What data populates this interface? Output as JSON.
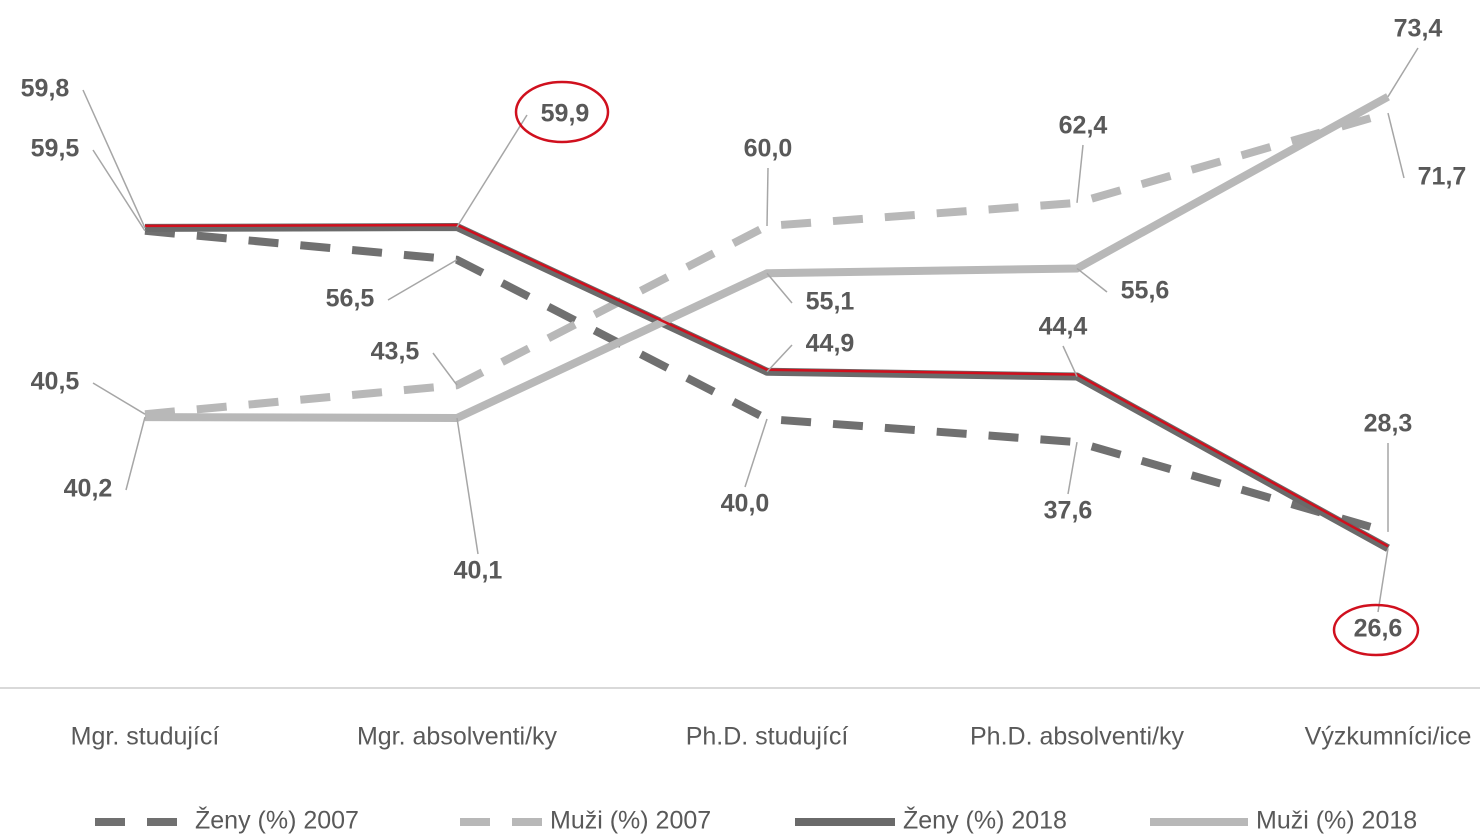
{
  "chart_data": {
    "type": "line",
    "categories": [
      "Mgr. studující",
      "Mgr. absolventi/ky",
      "Ph.D. studující",
      "Ph.D. absolventi/ky",
      "Výzkumníci/ice"
    ],
    "ylim": [
      20,
      80
    ],
    "legend": "bottom",
    "series": [
      {
        "name": "Ženy (%) 2007",
        "color": "#707070",
        "dashed": true,
        "values": [
          59.5,
          56.5,
          40.0,
          37.6,
          28.3
        ],
        "value_labels": [
          "59,5",
          "56,5",
          "40,0",
          "37,6",
          "28,3"
        ]
      },
      {
        "name": "Muži (%) 2007",
        "color": "#b8b8b8",
        "dashed": true,
        "values": [
          40.5,
          43.5,
          60.0,
          62.4,
          71.7
        ],
        "value_labels": [
          "40,5",
          "43,5",
          "60,0",
          "62,4",
          "71,7"
        ]
      },
      {
        "name": "Ženy (%) 2018",
        "color": "#6a6a6a",
        "dashed": false,
        "values": [
          59.8,
          59.9,
          44.9,
          44.4,
          26.6
        ],
        "value_labels": [
          "59,8",
          "59,9",
          "44,9",
          "44,4",
          "26,6"
        ]
      },
      {
        "name": "Muži (%) 2018",
        "color": "#b8b8b8",
        "dashed": false,
        "values": [
          40.2,
          40.1,
          55.1,
          55.6,
          73.4
        ],
        "value_labels": [
          "40,2",
          "40,1",
          "55,1",
          "55,6",
          "73,4"
        ]
      }
    ]
  }
}
